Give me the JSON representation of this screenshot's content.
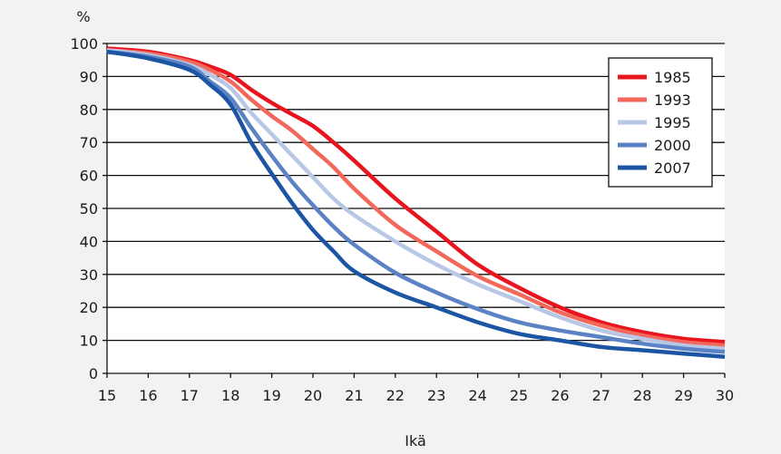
{
  "chart_data": {
    "type": "line",
    "title": "",
    "xlabel": "Ikä",
    "ylabel": "%",
    "xlim": [
      15,
      30
    ],
    "ylim": [
      0,
      100
    ],
    "x_ticks": [
      15,
      16,
      17,
      18,
      19,
      20,
      21,
      22,
      23,
      24,
      25,
      26,
      27,
      28,
      29,
      30
    ],
    "y_ticks": [
      0,
      10,
      20,
      30,
      40,
      50,
      60,
      70,
      80,
      90,
      100
    ],
    "grid": "horizontal",
    "legend_position": "top-right",
    "x": [
      15,
      16,
      17,
      17.5,
      18,
      18.5,
      19,
      19.5,
      20,
      20.5,
      21,
      22,
      23,
      24,
      25,
      26,
      27,
      28,
      29,
      30
    ],
    "series": [
      {
        "name": "1985",
        "color": "#e8141e",
        "values": [
          98.5,
          97.5,
          95,
          93,
          90.5,
          86,
          82,
          78.5,
          75,
          70,
          64.5,
          53,
          43,
          33,
          26,
          20,
          15.5,
          12.5,
          10.5,
          9.5
        ]
      },
      {
        "name": "1993",
        "color": "#f2685a",
        "values": [
          98,
          97,
          94.5,
          92,
          88.5,
          83,
          78,
          73.5,
          68,
          62.5,
          56,
          45,
          37,
          29.5,
          24,
          18.5,
          14.5,
          11.5,
          9.5,
          8.5
        ]
      },
      {
        "name": "1995",
        "color": "#b8c7e6",
        "values": [
          98,
          96.5,
          93.5,
          90.5,
          86.5,
          79,
          72.5,
          66,
          59.5,
          53,
          48,
          40,
          33,
          27,
          22,
          17,
          13,
          10.5,
          8.5,
          7.5
        ]
      },
      {
        "name": "2000",
        "color": "#5b82c4",
        "values": [
          97.5,
          96,
          93,
          88.5,
          83.5,
          74.5,
          66,
          58,
          51,
          44.5,
          39,
          30.5,
          24.5,
          19.5,
          15.5,
          13,
          11,
          9,
          7.5,
          6.5
        ]
      },
      {
        "name": "2007",
        "color": "#1b55a3",
        "values": [
          97.5,
          95.5,
          92,
          87.5,
          81.5,
          70,
          60.5,
          51.5,
          43.5,
          37,
          31,
          24.5,
          20,
          15.5,
          12,
          10,
          8,
          7,
          6,
          5
        ]
      }
    ]
  }
}
